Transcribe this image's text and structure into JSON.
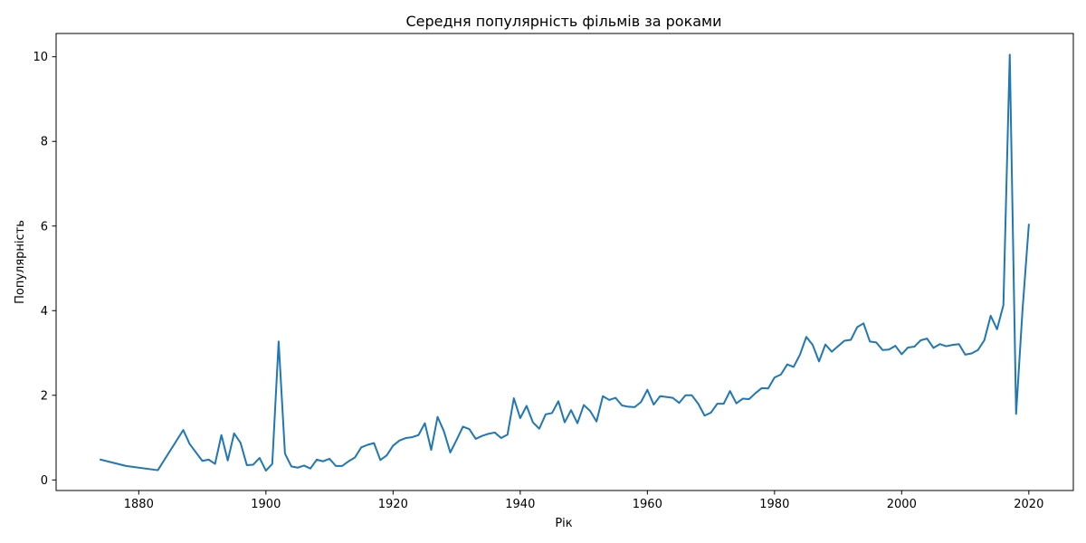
{
  "chart_data": {
    "type": "line",
    "title": "Середня популярність фільмів за роками",
    "xlabel": "Рік",
    "ylabel": "Популярність",
    "xlim": [
      1867,
      2027
    ],
    "ylim": [
      -0.25,
      10.55
    ],
    "xticks": [
      1880,
      1900,
      1920,
      1940,
      1960,
      1980,
      2000,
      2020
    ],
    "yticks": [
      0,
      2,
      4,
      6,
      8,
      10
    ],
    "grid": false,
    "color": "#1f77b4",
    "series": [
      {
        "x": [
          1874,
          1878,
          1883,
          1887,
          1888,
          1890,
          1891,
          1892,
          1893,
          1894,
          1895,
          1896,
          1897,
          1898,
          1899,
          1900,
          1901,
          1902,
          1903,
          1904,
          1905,
          1906,
          1907,
          1908,
          1909,
          1910,
          1911,
          1912,
          1913,
          1914,
          1915,
          1916,
          1917,
          1918,
          1919,
          1920,
          1921,
          1922,
          1923,
          1924,
          1925,
          1926,
          1927,
          1928,
          1929,
          1930,
          1931,
          1932,
          1933,
          1934,
          1935,
          1936,
          1937,
          1938,
          1939,
          1940,
          1941,
          1942,
          1943,
          1944,
          1945,
          1946,
          1947,
          1948,
          1949,
          1950,
          1951,
          1952,
          1953,
          1954,
          1955,
          1956,
          1957,
          1958,
          1959,
          1960,
          1961,
          1962,
          1963,
          1964,
          1965,
          1966,
          1967,
          1968,
          1969,
          1970,
          1971,
          1972,
          1973,
          1974,
          1975,
          1976,
          1977,
          1978,
          1979,
          1980,
          1981,
          1982,
          1983,
          1984,
          1985,
          1986,
          1987,
          1988,
          1989,
          1990,
          1991,
          1992,
          1993,
          1994,
          1995,
          1996,
          1997,
          1998,
          1999,
          2000,
          2001,
          2002,
          2003,
          2004,
          2005,
          2006,
          2007,
          2008,
          2009,
          2010,
          2011,
          2012,
          2013,
          2014,
          2015,
          2016,
          2017,
          2018,
          2019,
          2020
        ],
        "y": [
          0.48,
          0.33,
          0.23,
          1.18,
          0.85,
          0.45,
          0.48,
          0.38,
          1.06,
          0.46,
          1.1,
          0.88,
          0.35,
          0.36,
          0.52,
          0.22,
          0.38,
          3.27,
          0.62,
          0.32,
          0.29,
          0.34,
          0.27,
          0.48,
          0.44,
          0.5,
          0.33,
          0.33,
          0.44,
          0.53,
          0.77,
          0.83,
          0.87,
          0.47,
          0.58,
          0.81,
          0.93,
          0.99,
          1.01,
          1.06,
          1.34,
          0.71,
          1.49,
          1.15,
          0.65,
          0.95,
          1.26,
          1.2,
          0.97,
          1.04,
          1.09,
          1.12,
          0.99,
          1.07,
          1.93,
          1.46,
          1.75,
          1.36,
          1.21,
          1.55,
          1.58,
          1.86,
          1.36,
          1.65,
          1.34,
          1.77,
          1.63,
          1.38,
          1.98,
          1.89,
          1.94,
          1.76,
          1.73,
          1.72,
          1.84,
          2.13,
          1.78,
          1.98,
          1.96,
          1.94,
          1.82,
          2.0,
          2.0,
          1.8,
          1.52,
          1.59,
          1.8,
          1.8,
          2.1,
          1.81,
          1.92,
          1.91,
          2.05,
          2.17,
          2.16,
          2.42,
          2.49,
          2.73,
          2.67,
          2.96,
          3.38,
          3.19,
          2.8,
          3.2,
          3.03,
          3.16,
          3.29,
          3.31,
          3.61,
          3.7,
          3.27,
          3.25,
          3.07,
          3.08,
          3.17,
          2.97,
          3.13,
          3.15,
          3.3,
          3.34,
          3.12,
          3.21,
          3.16,
          3.19,
          3.21,
          2.96,
          2.99,
          3.07,
          3.3,
          3.88,
          3.56,
          4.13,
          10.05,
          1.56,
          4.0,
          6.03
        ]
      }
    ]
  }
}
